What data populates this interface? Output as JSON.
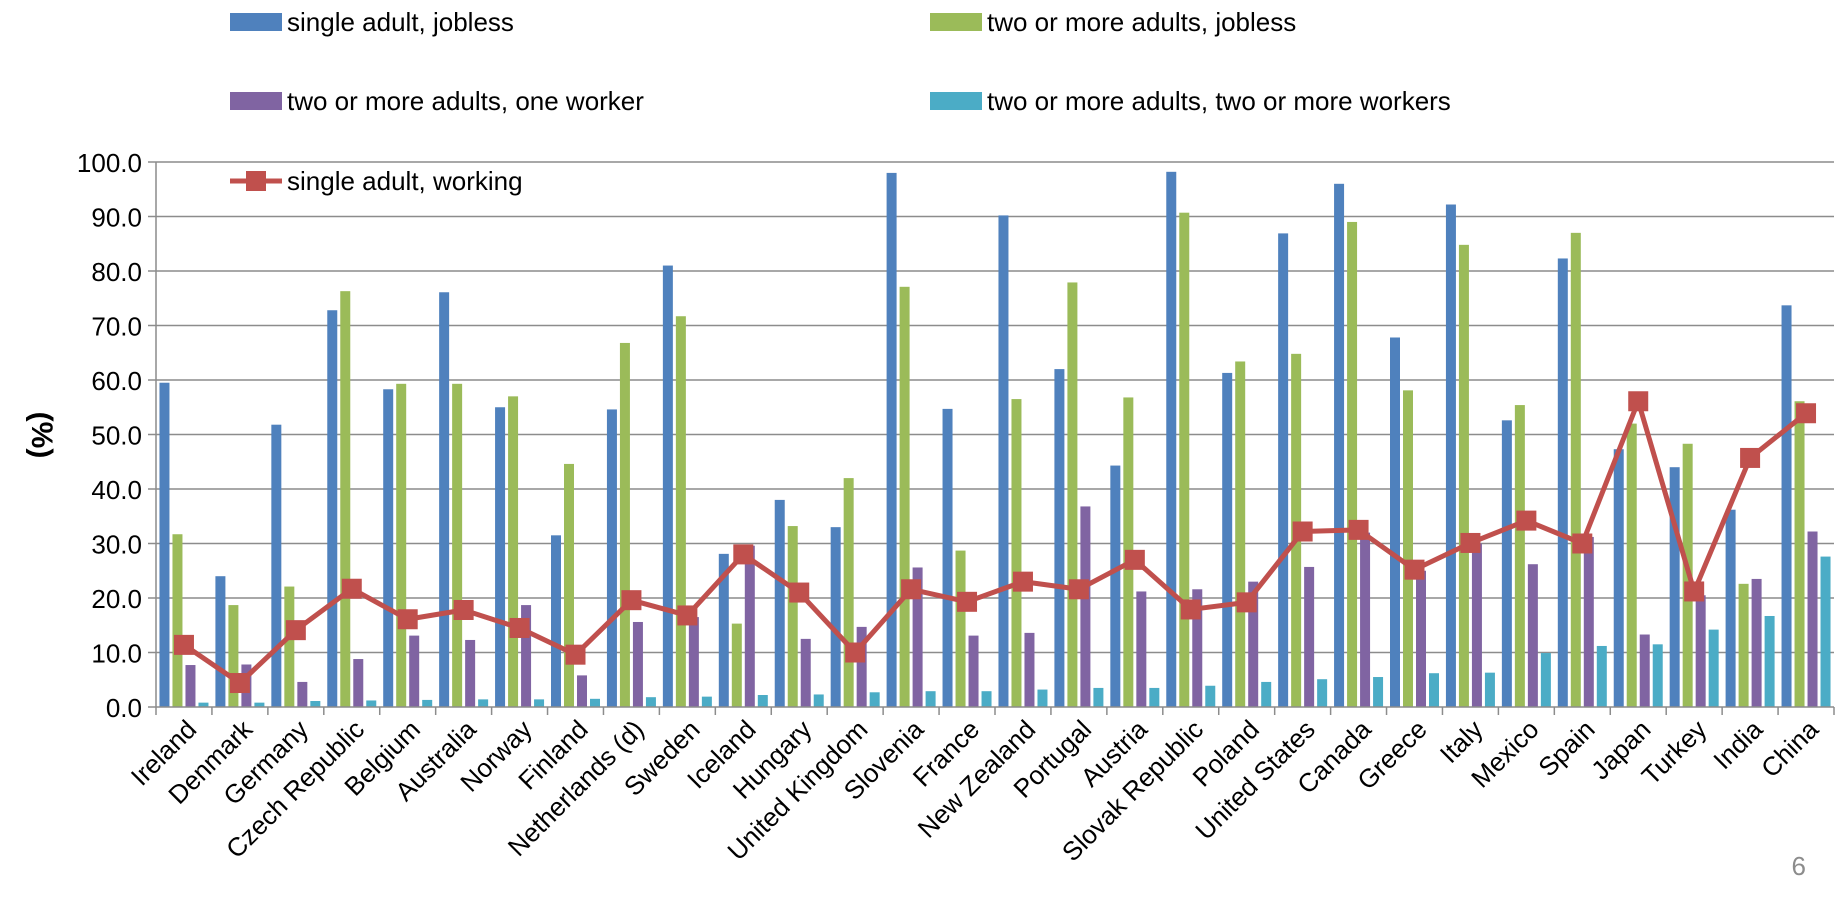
{
  "chart_data": {
    "type": "bar",
    "ylabel": "(%)",
    "ylim": [
      0,
      100
    ],
    "yticks": [
      "0.0",
      "10.0",
      "20.0",
      "30.0",
      "40.0",
      "50.0",
      "60.0",
      "70.0",
      "80.0",
      "90.0",
      "100.0"
    ],
    "grid": true,
    "legend_position": "top",
    "categories": [
      "Ireland",
      "Denmark",
      "Germany",
      "Czech Republic",
      "Belgium",
      "Australia",
      "Norway",
      "Finland",
      "Netherlands (d)",
      "Sweden",
      "Iceland",
      "Hungary",
      "United Kingdom",
      "Slovenia",
      "France",
      "New Zealand",
      "Portugal",
      "Austria",
      "Slovak Republic",
      "Poland",
      "United States",
      "Canada",
      "Greece",
      "Italy",
      "Mexico",
      "Spain",
      "Japan",
      "Turkey",
      "India",
      "China"
    ],
    "series": [
      {
        "name": "single adult, jobless",
        "type": "bar",
        "color": "#4F81BD",
        "values": [
          59.5,
          24.0,
          51.8,
          72.8,
          58.3,
          76.1,
          55.0,
          31.5,
          54.6,
          81.0,
          28.1,
          38.0,
          33.0,
          98.0,
          54.7,
          90.2,
          62.0,
          44.3,
          98.2,
          61.3,
          86.9,
          96.0,
          67.8,
          92.2,
          52.6,
          82.3,
          47.3,
          44.0,
          36.2,
          73.7
        ]
      },
      {
        "name": "two or more adults, jobless",
        "type": "bar",
        "color": "#9BBB59",
        "values": [
          31.7,
          18.7,
          22.1,
          76.3,
          59.3,
          59.3,
          57.0,
          44.6,
          66.8,
          71.7,
          15.3,
          33.2,
          42.0,
          77.1,
          28.7,
          56.5,
          77.9,
          56.8,
          90.7,
          63.4,
          64.8,
          89.0,
          58.1,
          84.8,
          55.4,
          87.0,
          52.0,
          48.3,
          22.6,
          56.1
        ]
      },
      {
        "name": "two or more adults, one worker",
        "type": "bar",
        "color": "#8064A2",
        "values": [
          7.7,
          7.8,
          4.6,
          8.8,
          13.1,
          12.3,
          18.7,
          5.8,
          15.6,
          16.5,
          29.6,
          12.5,
          14.7,
          25.6,
          13.1,
          13.6,
          36.8,
          21.2,
          21.6,
          23.0,
          25.7,
          32.0,
          25.0,
          30.0,
          26.2,
          31.2,
          13.3,
          20.5,
          23.5,
          32.2
        ]
      },
      {
        "name": "two or more adults, two or more workers",
        "type": "bar",
        "color": "#4BACC6",
        "values": [
          0.8,
          0.8,
          1.1,
          1.2,
          1.3,
          1.4,
          1.4,
          1.5,
          1.8,
          1.9,
          2.2,
          2.3,
          2.7,
          2.9,
          2.9,
          3.2,
          3.5,
          3.5,
          3.9,
          4.6,
          5.1,
          5.5,
          6.2,
          6.3,
          9.9,
          11.2,
          11.5,
          14.2,
          16.7,
          27.6
        ]
      },
      {
        "name": "single adult, working",
        "type": "line",
        "color": "#C0504D",
        "values": [
          11.4,
          4.4,
          14.1,
          21.7,
          16.1,
          17.8,
          14.5,
          9.6,
          19.6,
          16.8,
          28.0,
          21.0,
          10.0,
          21.6,
          19.3,
          23.0,
          21.6,
          27.0,
          17.9,
          19.2,
          32.2,
          32.5,
          25.2,
          30.1,
          34.2,
          30.0,
          56.1,
          21.2,
          45.7,
          53.9
        ]
      }
    ]
  },
  "page_number": "6"
}
